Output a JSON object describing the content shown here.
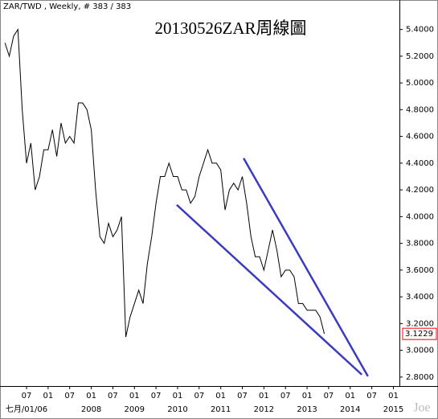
{
  "chart_data": {
    "type": "line",
    "title": "20130526ZAR周線圖",
    "header": "ZAR/TWD , Weekly, # 383 / 383",
    "watermark": "Joe",
    "x": [
      2006.0,
      2006.1,
      2006.2,
      2006.3,
      2006.4,
      2006.5,
      2006.6,
      2006.7,
      2006.8,
      2006.9,
      2007.0,
      2007.1,
      2007.2,
      2007.3,
      2007.4,
      2007.5,
      2007.6,
      2007.7,
      2007.8,
      2007.9,
      2008.0,
      2008.1,
      2008.2,
      2008.3,
      2008.4,
      2008.5,
      2008.6,
      2008.7,
      2008.8,
      2008.9,
      2009.0,
      2009.1,
      2009.2,
      2009.3,
      2009.4,
      2009.5,
      2009.6,
      2009.7,
      2009.8,
      2009.9,
      2010.0,
      2010.1,
      2010.2,
      2010.3,
      2010.4,
      2010.5,
      2010.6,
      2010.7,
      2010.8,
      2010.9,
      2011.0,
      2011.1,
      2011.2,
      2011.3,
      2011.4,
      2011.5,
      2011.6,
      2011.7,
      2011.8,
      2011.9,
      2012.0,
      2012.1,
      2012.2,
      2012.3,
      2012.4,
      2012.5,
      2012.6,
      2012.7,
      2012.8,
      2012.9,
      2013.0,
      2013.1,
      2013.2,
      2013.3,
      2013.4
    ],
    "series": [
      {
        "name": "ZAR/TWD",
        "color": "#000000",
        "values": [
          5.3,
          5.2,
          5.35,
          5.4,
          4.8,
          4.4,
          4.55,
          4.2,
          4.3,
          4.5,
          4.5,
          4.65,
          4.45,
          4.7,
          4.55,
          4.6,
          4.55,
          4.85,
          4.85,
          4.8,
          4.65,
          4.2,
          3.85,
          3.8,
          3.95,
          3.85,
          3.9,
          4.0,
          3.1,
          3.25,
          3.35,
          3.45,
          3.35,
          3.65,
          3.85,
          4.1,
          4.3,
          4.3,
          4.4,
          4.3,
          4.3,
          4.2,
          4.2,
          4.1,
          4.15,
          4.3,
          4.4,
          4.5,
          4.4,
          4.4,
          4.35,
          4.05,
          4.2,
          4.25,
          4.2,
          4.3,
          4.1,
          3.85,
          3.7,
          3.7,
          3.6,
          3.75,
          3.9,
          3.75,
          3.55,
          3.6,
          3.6,
          3.55,
          3.35,
          3.35,
          3.3,
          3.3,
          3.3,
          3.25,
          3.1229
        ]
      }
    ],
    "trendlines": [
      {
        "x": [
          2009.98,
          2014.27
        ],
        "y": [
          4.088,
          2.818
        ],
        "color": "#3b3bbf"
      },
      {
        "x": [
          2011.53,
          2014.41
        ],
        "y": [
          4.437,
          2.806
        ],
        "color": "#3b3bbf"
      }
    ],
    "xlim": [
      2005.885,
      2015.14
    ],
    "ylim": [
      2.745,
      5.5
    ],
    "xticks": [
      {
        "value": 2006.5,
        "label": "07"
      },
      {
        "value": 2007,
        "label": "01"
      },
      {
        "value": 2007.5,
        "label": "07"
      },
      {
        "value": 2008,
        "label": "01"
      },
      {
        "value": 2008.5,
        "label": "07"
      },
      {
        "value": 2009,
        "label": "01"
      },
      {
        "value": 2009.5,
        "label": "07"
      },
      {
        "value": 2010,
        "label": "01"
      },
      {
        "value": 2010.5,
        "label": "07"
      },
      {
        "value": 2011,
        "label": "01"
      },
      {
        "value": 2011.5,
        "label": "07"
      },
      {
        "value": 2012,
        "label": "01"
      },
      {
        "value": 2012.5,
        "label": "07"
      },
      {
        "value": 2013,
        "label": "01"
      },
      {
        "value": 2013.5,
        "label": "07"
      },
      {
        "value": 2014,
        "label": "01"
      },
      {
        "value": 2014.5,
        "label": "07"
      },
      {
        "value": 2015,
        "label": "01"
      }
    ],
    "xticks_years": [
      {
        "value": 2006.5,
        "label": "七月/01/06"
      },
      2008,
      2009,
      2010,
      2011,
      2012,
      2013,
      2014,
      2015
    ],
    "yticks": [
      {
        "value": 2.8,
        "label": "2.8000"
      },
      {
        "value": 3.0,
        "label": "3.0000"
      },
      {
        "value": 3.2,
        "label": "3.2000"
      },
      {
        "value": 3.4,
        "label": "3.4000"
      },
      {
        "value": 3.6,
        "label": "3.6000"
      },
      {
        "value": 3.8,
        "label": "3.8000"
      },
      {
        "value": 4.0,
        "label": "4.0000"
      },
      {
        "value": 4.2,
        "label": "4.2000"
      },
      {
        "value": 4.4,
        "label": "4.4000"
      },
      {
        "value": 4.6,
        "label": "4.6000"
      },
      {
        "value": 4.8,
        "label": "4.8000"
      },
      {
        "value": 5.0,
        "label": "5.0000"
      },
      {
        "value": 5.2,
        "label": "5.2000"
      },
      {
        "value": 5.4,
        "label": "5.4000"
      }
    ],
    "last_value_color": "#ff0000"
  }
}
